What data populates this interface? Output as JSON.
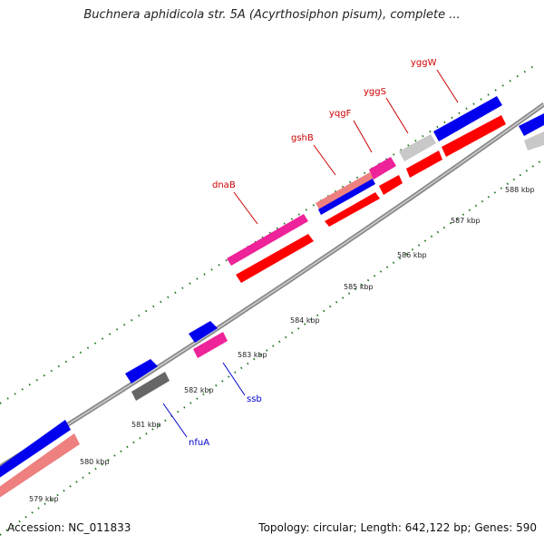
{
  "title": "Buchnera aphidicola str. 5A (Acyrthosiphon pisum), complete ...",
  "footer": {
    "accession": "Accession: NC_011833",
    "summary": "Topology: circular; Length: 642,122 bp; Genes: 590"
  },
  "tick_labels": [
    "579 kbp",
    "580 kbp",
    "581 kbp",
    "582 kbp",
    "583 kbp",
    "584 kbp",
    "585 kbp",
    "586 kbp",
    "587 kbp",
    "588 kbp"
  ],
  "gene_labels_forward": [
    "dnaB",
    "gshB",
    "yqgF",
    "yggS",
    "yggW"
  ],
  "gene_labels_reverse": [
    "nfuA",
    "ssb"
  ],
  "colors": {
    "forward_label": "#cc0000",
    "reverse_label": "#0000cc",
    "blue": "#0000ee",
    "pink": "#ee2299",
    "red": "#ff0000",
    "salmon": "#ee8080",
    "gray": "#c8c8c8",
    "dark_gray": "#666666",
    "tick": "#227722"
  }
}
